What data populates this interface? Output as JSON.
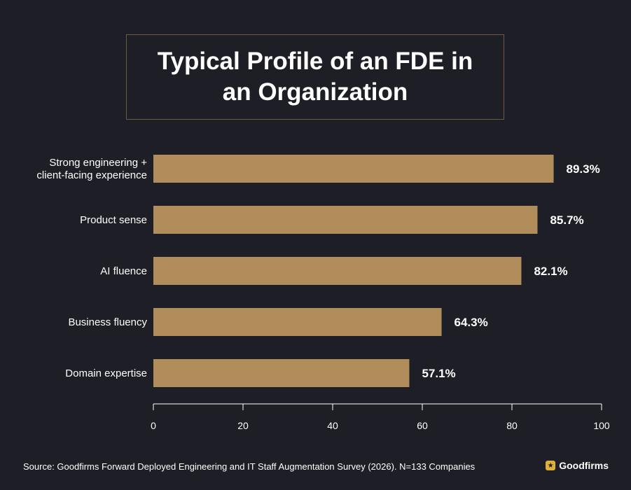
{
  "title": "Typical Profile of an FDE in an Organization",
  "source": "Source: Goodfirms Forward Deployed Engineering and IT Staff Augmentation Survey (2026). N=133 Companies",
  "brand": {
    "name": "Goodfirms",
    "icon": "star-icon",
    "color": "#e0b03c"
  },
  "colors": {
    "bar": "#b08d5a",
    "background": "#1e1f26",
    "text": "#ffffff"
  },
  "chart_data": {
    "type": "bar",
    "orientation": "horizontal",
    "categories": [
      [
        "Strong engineering +",
        "client-facing experience"
      ],
      [
        "Product sense"
      ],
      [
        "AI fluence"
      ],
      [
        "Business fluency"
      ],
      [
        "Domain expertise"
      ]
    ],
    "values": [
      89.3,
      85.7,
      82.1,
      64.3,
      57.1
    ],
    "value_labels": [
      "89.3%",
      "85.7%",
      "82.1%",
      "64.3%",
      "57.1%"
    ],
    "xlim": [
      0,
      100
    ],
    "ticks": [
      0,
      20,
      40,
      60,
      80,
      100
    ],
    "grid": false
  }
}
